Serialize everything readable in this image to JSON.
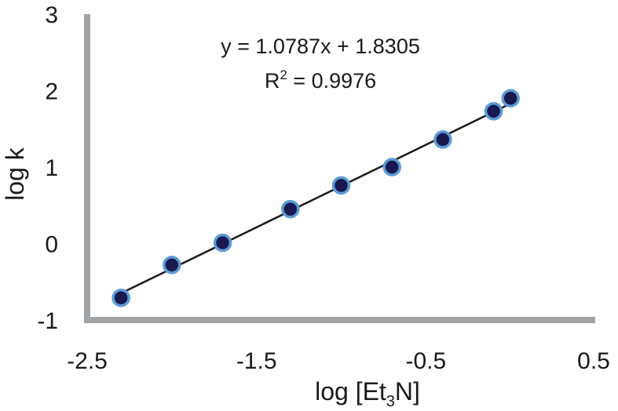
{
  "chart_data": {
    "type": "scatter",
    "xlabel_main": "log [Et",
    "xlabel_sub": "3",
    "xlabel_end": "N]",
    "ylabel": "log k",
    "xlim": [
      -2.5,
      0.5
    ],
    "ylim": [
      -1,
      3
    ],
    "x_ticks": [
      -2.5,
      -1.5,
      -0.5,
      0.5
    ],
    "x_tick_labels": [
      "-2.5",
      "-1.5",
      "-0.5",
      "0.5"
    ],
    "y_ticks": [
      -1,
      0,
      1,
      2,
      3
    ],
    "y_tick_labels": [
      "-1",
      "0",
      "1",
      "2",
      "3"
    ],
    "grid": false,
    "legend": "none",
    "points": [
      {
        "x": -2.3,
        "y": -0.71
      },
      {
        "x": -2.0,
        "y": -0.28
      },
      {
        "x": -1.7,
        "y": 0.01
      },
      {
        "x": -1.3,
        "y": 0.45
      },
      {
        "x": -1.0,
        "y": 0.76
      },
      {
        "x": -0.7,
        "y": 1.0
      },
      {
        "x": -0.4,
        "y": 1.36
      },
      {
        "x": -0.1,
        "y": 1.73
      },
      {
        "x": 0.0,
        "y": 1.9
      }
    ],
    "fit": {
      "slope": 1.0787,
      "intercept": 1.8305
    },
    "annotations": {
      "equation": "y = 1.0787x + 1.8305",
      "r2_prefix": "R",
      "r2_sup": "2",
      "r2_value": " = 0.9976"
    },
    "colors": {
      "marker_fill": "#17194f",
      "marker_edge": "#5b9bd5",
      "fit_line": "#1a1a1a",
      "axis": "#a0a4a6"
    }
  }
}
